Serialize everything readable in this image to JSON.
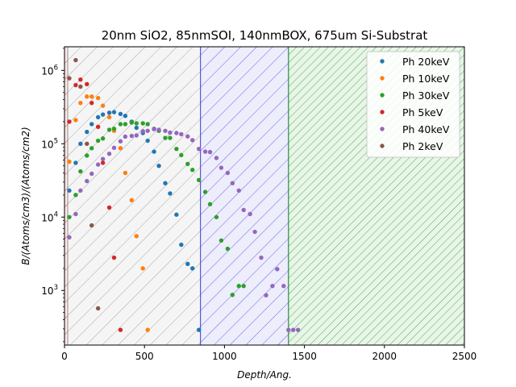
{
  "chart_data": {
    "type": "scatter",
    "title": "20nm SiO2, 85nmSOI, 140nmBOX, 675um Si-Substrat",
    "xlabel": "Depth/Ang.",
    "ylabel": "B/(Atoms/cm3)/(Atoms/cm2)",
    "xlim": [
      0,
      2500
    ],
    "ylim": [
      180,
      2100000
    ],
    "yscale": "log",
    "grid": false,
    "legend_position": "top-right",
    "x_ticks": [
      0,
      500,
      1000,
      1500,
      2000,
      2500
    ],
    "y_ticks": [
      {
        "value": 1000,
        "base": "10",
        "exp": "3"
      },
      {
        "value": 10000,
        "base": "10",
        "exp": "4"
      },
      {
        "value": 100000,
        "base": "10",
        "exp": "5"
      },
      {
        "value": 1000000,
        "base": "10",
        "exp": "6"
      }
    ],
    "regions": [
      {
        "layer": "SiO2",
        "x0": 0,
        "x1": 20,
        "color": "#d62728"
      },
      {
        "layer": "SOI",
        "x0": 20,
        "x1": 850,
        "color": "#999999"
      },
      {
        "layer": "BOX",
        "x0": 850,
        "x1": 1400,
        "color": "#4c4ce0"
      },
      {
        "layer": "Si-Substrat",
        "x0": 1400,
        "x1": 2500,
        "color": "#2ca02c"
      }
    ],
    "series": [
      {
        "name": "Ph 20keV",
        "color": "#1f77b4",
        "x": [
          30,
          70,
          100,
          140,
          170,
          210,
          240,
          280,
          310,
          350,
          380,
          420,
          450,
          490,
          520,
          560,
          590,
          630,
          660,
          700,
          730,
          770,
          800,
          840
        ],
        "y": [
          23000,
          55000,
          100000,
          145000,
          185000,
          230000,
          250000,
          265000,
          270000,
          255000,
          240000,
          200000,
          165000,
          140000,
          110000,
          78000,
          50000,
          29000,
          21000,
          10800,
          4200,
          2300,
          2000,
          290
        ]
      },
      {
        "name": "Ph 10keV",
        "color": "#ff7f0e",
        "x": [
          30,
          70,
          100,
          140,
          170,
          210,
          240,
          280,
          310,
          350,
          380,
          420,
          450,
          490,
          520
        ],
        "y": [
          57000,
          210000,
          360000,
          440000,
          440000,
          420000,
          330000,
          230000,
          150000,
          87000,
          40000,
          17000,
          5500,
          2000,
          290
        ]
      },
      {
        "name": "Ph 30keV",
        "color": "#2ca02c",
        "x": [
          30,
          70,
          100,
          140,
          170,
          210,
          240,
          280,
          310,
          350,
          380,
          420,
          450,
          490,
          520,
          560,
          590,
          630,
          660,
          700,
          730,
          770,
          800,
          840,
          880,
          910,
          950,
          980,
          1020,
          1050,
          1090,
          1120
        ],
        "y": [
          10000,
          20000,
          42000,
          69000,
          87000,
          110000,
          118000,
          155000,
          160000,
          185000,
          185000,
          195000,
          190000,
          190000,
          185000,
          160000,
          150000,
          120000,
          120000,
          85000,
          70000,
          53000,
          44000,
          32000,
          22000,
          15000,
          10000,
          4800,
          3700,
          870,
          1150,
          1150
        ]
      },
      {
        "name": "Ph 5keV",
        "color": "#d62728",
        "x": [
          30,
          70,
          100,
          140,
          170,
          210,
          240,
          280,
          310,
          350
        ],
        "y": [
          200000,
          630000,
          750000,
          650000,
          360000,
          170000,
          55000,
          13500,
          2800,
          290
        ]
      },
      {
        "name": "Ph 40keV",
        "color": "#9467bd",
        "x": [
          30,
          70,
          100,
          140,
          170,
          210,
          240,
          280,
          310,
          350,
          380,
          420,
          450,
          490,
          520,
          560,
          590,
          630,
          660,
          700,
          730,
          770,
          800,
          840,
          880,
          910,
          950,
          980,
          1020,
          1050,
          1090,
          1120,
          1160,
          1190,
          1230,
          1260,
          1300,
          1330,
          1370,
          1400,
          1430,
          1460
        ],
        "y": [
          5300,
          11000,
          23000,
          31000,
          39000,
          52000,
          62000,
          73000,
          88000,
          108000,
          125000,
          128000,
          130000,
          148000,
          150000,
          158000,
          155000,
          150000,
          142000,
          140000,
          135000,
          126000,
          112000,
          85000,
          78000,
          77000,
          64000,
          47000,
          40000,
          29000,
          23000,
          12500,
          11000,
          6300,
          2800,
          860,
          1150,
          1950,
          1150,
          290,
          290,
          290
        ]
      },
      {
        "name": "Ph 2keV",
        "color": "#8c564b",
        "x": [
          30,
          70,
          100,
          140,
          170,
          210
        ],
        "y": [
          780000,
          1380000,
          600000,
          100000,
          7700,
          570
        ]
      }
    ]
  }
}
